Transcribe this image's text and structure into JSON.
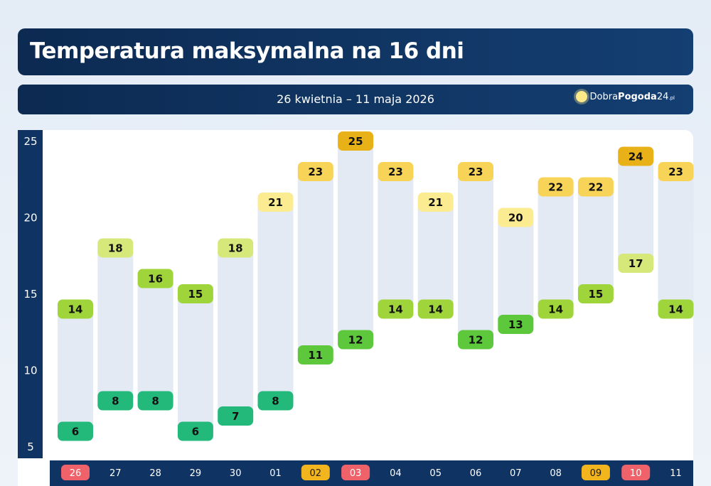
{
  "header": {
    "title": "Temperatura maksymalna na 16 dni",
    "date_range": "26 kwietnia – 11 maja 2026",
    "logo": {
      "prefix": "Dobra",
      "bold": "Pogoda",
      "suffix": "24",
      "tld": ".pl",
      "icon": "sun-icon"
    }
  },
  "chart_data": {
    "type": "range-bar",
    "ylim": [
      5,
      25
    ],
    "yticks": [
      5,
      10,
      15,
      20,
      25
    ],
    "grid": false,
    "categories": [
      "26",
      "27",
      "28",
      "29",
      "30",
      "01",
      "02",
      "03",
      "04",
      "05",
      "06",
      "07",
      "08",
      "09",
      "10",
      "11"
    ],
    "category_highlights": {
      "26": "#f0626a",
      "02": "#f2b51e",
      "03": "#f0626a",
      "09": "#f2b51e",
      "10": "#f0626a"
    },
    "max": [
      14,
      18,
      16,
      15,
      18,
      21,
      23,
      25,
      23,
      21,
      23,
      20,
      22,
      22,
      24,
      23
    ],
    "min": [
      6,
      8,
      8,
      6,
      7,
      8,
      11,
      12,
      14,
      14,
      12,
      13,
      14,
      15,
      17,
      14
    ]
  },
  "colors": {
    "bar": "#e3eaf4",
    "axis": "#0f3363",
    "scale": [
      {
        "upto": 8,
        "color": "#22b97a"
      },
      {
        "upto": 13,
        "color": "#5ec83c"
      },
      {
        "upto": 16,
        "color": "#9fd53a"
      },
      {
        "upto": 18,
        "color": "#d6e879"
      },
      {
        "upto": 21,
        "color": "#fbec91"
      },
      {
        "upto": 23,
        "color": "#f7d458"
      },
      {
        "upto": 25,
        "color": "#e9b118"
      }
    ]
  }
}
